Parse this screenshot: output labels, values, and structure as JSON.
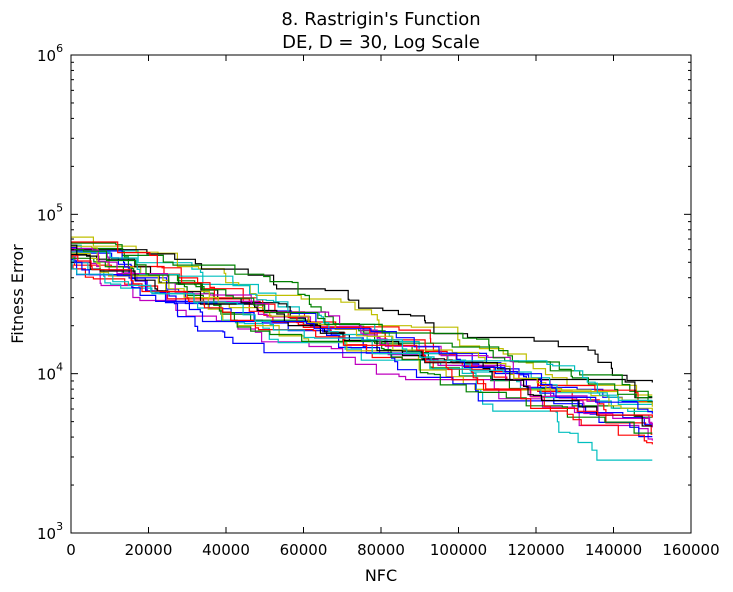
{
  "chart_data": {
    "type": "line",
    "title": "8.   Rastrigin's Function",
    "subtitle": "DE, D = 30, Log Scale",
    "xlabel": "NFC",
    "ylabel": "Fitness Error",
    "xlim": [
      0,
      160000
    ],
    "ylim": [
      1000,
      1000000
    ],
    "yscale": "log",
    "grid": false,
    "legend": "none",
    "x_ticks": [
      "0",
      "20000",
      "40000",
      "60000",
      "80000",
      "100000",
      "120000",
      "140000",
      "160000"
    ],
    "y_ticks": [
      {
        "value": 1000,
        "base": "10",
        "exp": "3"
      },
      {
        "value": 10000,
        "base": "10",
        "exp": "4"
      },
      {
        "value": 100000,
        "base": "10",
        "exp": "5"
      },
      {
        "value": 1000000,
        "base": "10",
        "exp": "6"
      }
    ],
    "x_end": 150000,
    "series": [
      {
        "color": "#0000ff",
        "start": 57000,
        "end": 6500
      },
      {
        "color": "#008000",
        "start": 61000,
        "end": 5400
      },
      {
        "color": "#ff0000",
        "start": 54000,
        "end": 4400
      },
      {
        "color": "#00bfbf",
        "start": 64000,
        "end": 2900
      },
      {
        "color": "#bf00bf",
        "start": 58000,
        "end": 3800
      },
      {
        "color": "#bfbf00",
        "start": 72000,
        "end": 7800
      },
      {
        "color": "#000000",
        "start": 60000,
        "end": 8800
      },
      {
        "color": "#0000ff",
        "start": 52000,
        "end": 4100
      },
      {
        "color": "#008000",
        "start": 66000,
        "end": 7200
      },
      {
        "color": "#ff0000",
        "start": 48000,
        "end": 6800
      },
      {
        "color": "#00bfbf",
        "start": 55000,
        "end": 6000
      },
      {
        "color": "#bf00bf",
        "start": 59000,
        "end": 5200
      },
      {
        "color": "#bfbf00",
        "start": 63000,
        "end": 5800
      },
      {
        "color": "#000000",
        "start": 56000,
        "end": 7400
      },
      {
        "color": "#0000ff",
        "start": 62000,
        "end": 4800
      },
      {
        "color": "#008000",
        "start": 53000,
        "end": 4500
      },
      {
        "color": "#ff0000",
        "start": 67000,
        "end": 3600
      },
      {
        "color": "#00bfbf",
        "start": 58000,
        "end": 6600
      },
      {
        "color": "#bf00bf",
        "start": 61000,
        "end": 4600
      },
      {
        "color": "#bfbf00",
        "start": 57000,
        "end": 6200
      },
      {
        "color": "#000000",
        "start": 64000,
        "end": 5000
      },
      {
        "color": "#0000ff",
        "start": 50000,
        "end": 5600
      },
      {
        "color": "#008000",
        "start": 60000,
        "end": 6900
      },
      {
        "color": "#ff0000",
        "start": 55000,
        "end": 5300
      },
      {
        "color": "#00bfbf",
        "start": 51000,
        "end": 7000
      }
    ]
  }
}
